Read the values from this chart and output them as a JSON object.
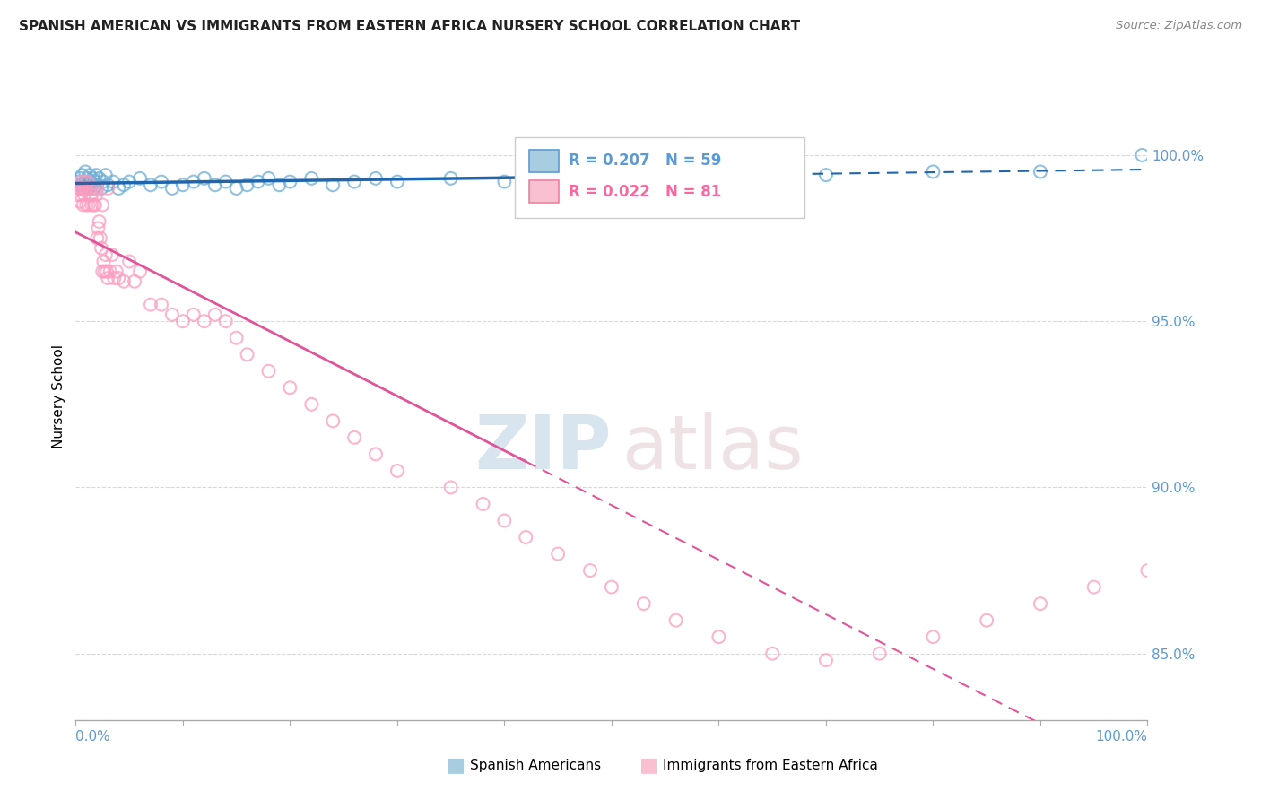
{
  "title": "SPANISH AMERICAN VS IMMIGRANTS FROM EASTERN AFRICA NURSERY SCHOOL CORRELATION CHART",
  "source": "Source: ZipAtlas.com",
  "ylabel": "Nursery School",
  "watermark_zip": "ZIP",
  "watermark_atlas": "atlas",
  "legend_blue_R": 0.207,
  "legend_blue_N": 59,
  "legend_pink_R": 0.022,
  "legend_pink_N": 81,
  "label_blue": "Spanish Americans",
  "label_pink": "Immigrants from Eastern Africa",
  "blue_scatter_color": "#6baed6",
  "pink_scatter_color": "#fc9cbf",
  "trend_blue_color": "#2166ac",
  "trend_pink_color": "#e0559a",
  "axis_label_color": "#5B9BD5",
  "grid_color": "#d8d8d8",
  "xlim": [
    0,
    100
  ],
  "ylim": [
    83.0,
    102.5
  ],
  "ytick_values": [
    85.0,
    90.0,
    95.0,
    100.0
  ],
  "blue_x": [
    0.2,
    0.3,
    0.4,
    0.5,
    0.6,
    0.7,
    0.8,
    0.9,
    1.0,
    1.1,
    1.2,
    1.3,
    1.4,
    1.5,
    1.6,
    1.7,
    1.8,
    1.9,
    2.0,
    2.2,
    2.4,
    2.6,
    2.8,
    3.0,
    3.5,
    4.0,
    4.5,
    5.0,
    6.0,
    7.0,
    8.0,
    9.0,
    10.0,
    11.0,
    12.0,
    13.0,
    14.0,
    15.0,
    16.0,
    17.0,
    18.0,
    19.0,
    20.0,
    22.0,
    24.0,
    26.0,
    28.0,
    30.0,
    35.0,
    40.0,
    45.0,
    50.0,
    55.0,
    60.0,
    65.0,
    70.0,
    80.0,
    90.0,
    99.5
  ],
  "blue_y": [
    99.2,
    99.0,
    99.3,
    99.1,
    99.4,
    99.0,
    99.2,
    99.5,
    99.1,
    99.3,
    99.0,
    99.4,
    99.2,
    99.1,
    99.3,
    99.0,
    99.2,
    99.4,
    99.1,
    99.3,
    99.0,
    99.2,
    99.4,
    99.1,
    99.2,
    99.0,
    99.1,
    99.2,
    99.3,
    99.1,
    99.2,
    99.0,
    99.1,
    99.2,
    99.3,
    99.1,
    99.2,
    99.0,
    99.1,
    99.2,
    99.3,
    99.1,
    99.2,
    99.3,
    99.1,
    99.2,
    99.3,
    99.2,
    99.3,
    99.2,
    99.3,
    99.2,
    99.3,
    99.4,
    99.3,
    99.4,
    99.5,
    99.5,
    100.0
  ],
  "pink_x": [
    0.2,
    0.3,
    0.4,
    0.5,
    0.6,
    0.7,
    0.8,
    0.9,
    1.0,
    1.1,
    1.2,
    1.3,
    1.4,
    1.5,
    1.6,
    1.7,
    1.8,
    1.9,
    2.0,
    2.1,
    2.2,
    2.3,
    2.4,
    2.5,
    2.6,
    2.7,
    2.8,
    2.9,
    3.0,
    3.2,
    3.4,
    3.6,
    3.8,
    4.0,
    4.5,
    5.0,
    5.5,
    6.0,
    7.0,
    8.0,
    9.0,
    10.0,
    11.0,
    12.0,
    13.0,
    14.0,
    15.0,
    16.0,
    18.0,
    20.0,
    22.0,
    24.0,
    26.0,
    28.0,
    30.0,
    35.0,
    38.0,
    40.0,
    42.0,
    45.0,
    48.0,
    50.0,
    53.0,
    56.0,
    60.0,
    65.0,
    70.0,
    75.0,
    80.0,
    85.0,
    90.0,
    95.0,
    100.0,
    0.5,
    0.6,
    0.8,
    1.0,
    1.5,
    2.0,
    2.5,
    3.0
  ],
  "pink_y": [
    98.8,
    99.0,
    98.6,
    99.2,
    99.0,
    98.5,
    98.8,
    99.0,
    98.5,
    99.2,
    98.5,
    99.0,
    98.8,
    98.5,
    99.0,
    98.5,
    98.5,
    98.8,
    97.5,
    97.8,
    98.0,
    97.5,
    97.2,
    96.5,
    96.8,
    96.5,
    97.0,
    96.5,
    96.3,
    96.5,
    97.0,
    96.3,
    96.5,
    96.3,
    96.2,
    96.8,
    96.2,
    96.5,
    95.5,
    95.5,
    95.2,
    95.0,
    95.2,
    95.0,
    95.2,
    95.0,
    94.5,
    94.0,
    93.5,
    93.0,
    92.5,
    92.0,
    91.5,
    91.0,
    90.5,
    90.0,
    89.5,
    89.0,
    88.5,
    88.0,
    87.5,
    87.0,
    86.5,
    86.0,
    85.5,
    85.0,
    84.8,
    85.0,
    85.5,
    86.0,
    86.5,
    87.0,
    87.5,
    98.8,
    99.0,
    99.2,
    99.0,
    98.8,
    99.0,
    98.5,
    99.0
  ]
}
